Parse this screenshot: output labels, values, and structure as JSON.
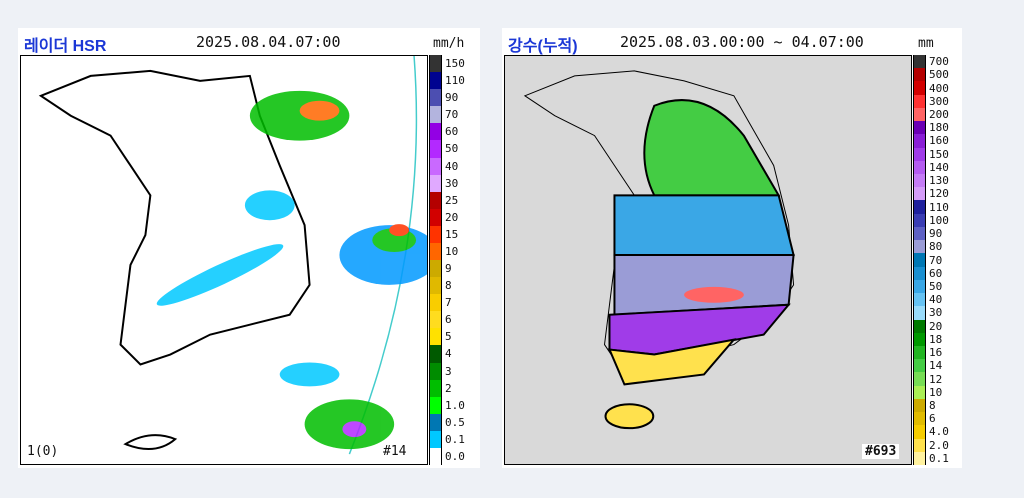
{
  "panels": [
    {
      "title": "레이더 HSR",
      "time": "2025.08.04.07:00",
      "unit": "mm/h",
      "corner_left": "1(0)",
      "corner_right": "#14",
      "legend": [
        {
          "label": "150",
          "color": "#333333"
        },
        {
          "label": "110",
          "color": "#000390"
        },
        {
          "label": "90",
          "color": "#4c4eb1"
        },
        {
          "label": "70",
          "color": "#b3b4de"
        },
        {
          "label": "60",
          "color": "#9300e4"
        },
        {
          "label": "50",
          "color": "#b329ff"
        },
        {
          "label": "40",
          "color": "#c969ff"
        },
        {
          "label": "30",
          "color": "#e0a9ff"
        },
        {
          "label": "25",
          "color": "#b40000"
        },
        {
          "label": "20",
          "color": "#d20000"
        },
        {
          "label": "15",
          "color": "#ff3300"
        },
        {
          "label": "10",
          "color": "#ff6600"
        },
        {
          "label": "9",
          "color": "#ccaa00"
        },
        {
          "label": "8",
          "color": "#e0b900"
        },
        {
          "label": "7",
          "color": "#f9cd00"
        },
        {
          "label": "6",
          "color": "#ffdc1f"
        },
        {
          "label": "5",
          "color": "#ffe100"
        },
        {
          "label": "4",
          "color": "#005a00"
        },
        {
          "label": "3",
          "color": "#008c00"
        },
        {
          "label": "2",
          "color": "#00be00"
        },
        {
          "label": "1.0",
          "color": "#00ff00"
        },
        {
          "label": "0.5",
          "color": "#0077b3"
        },
        {
          "label": "0.1",
          "color": "#00c8ff"
        },
        {
          "label": "0.0",
          "color": "#ffffff"
        }
      ]
    },
    {
      "title": "강수(누적)",
      "time": "2025.08.03.00:00 ~ 04.07:00",
      "unit": "mm",
      "corner_right": "#693",
      "legend": [
        {
          "label": "700",
          "color": "#333333"
        },
        {
          "label": "500",
          "color": "#b40000"
        },
        {
          "label": "400",
          "color": "#d20000"
        },
        {
          "label": "300",
          "color": "#ff3232"
        },
        {
          "label": "200",
          "color": "#ff6464"
        },
        {
          "label": "180",
          "color": "#6b00b4"
        },
        {
          "label": "160",
          "color": "#8a1fd6"
        },
        {
          "label": "150",
          "color": "#a03ce8"
        },
        {
          "label": "140",
          "color": "#b45cf0"
        },
        {
          "label": "130",
          "color": "#c47cf5"
        },
        {
          "label": "120",
          "color": "#d49cf8"
        },
        {
          "label": "110",
          "color": "#1f219d"
        },
        {
          "label": "100",
          "color": "#3a3db3"
        },
        {
          "label": "90",
          "color": "#5e61c4"
        },
        {
          "label": "80",
          "color": "#9a9cd6"
        },
        {
          "label": "70",
          "color": "#0077b3"
        },
        {
          "label": "60",
          "color": "#1a8fd0"
        },
        {
          "label": "50",
          "color": "#3aa7e6"
        },
        {
          "label": "40",
          "color": "#66c2f2"
        },
        {
          "label": "30",
          "color": "#99dbfa"
        },
        {
          "label": "20",
          "color": "#007a00"
        },
        {
          "label": "18",
          "color": "#009900"
        },
        {
          "label": "16",
          "color": "#22b522"
        },
        {
          "label": "14",
          "color": "#44cc44"
        },
        {
          "label": "12",
          "color": "#77dd55"
        },
        {
          "label": "10",
          "color": "#aaee55"
        },
        {
          "label": "8",
          "color": "#ccaa00"
        },
        {
          "label": "6",
          "color": "#e0bb00"
        },
        {
          "label": "4.0",
          "color": "#f5cc00"
        },
        {
          "label": "2.0",
          "color": "#ffe14d"
        },
        {
          "label": "0.1",
          "color": "#fff2a0"
        }
      ]
    }
  ]
}
